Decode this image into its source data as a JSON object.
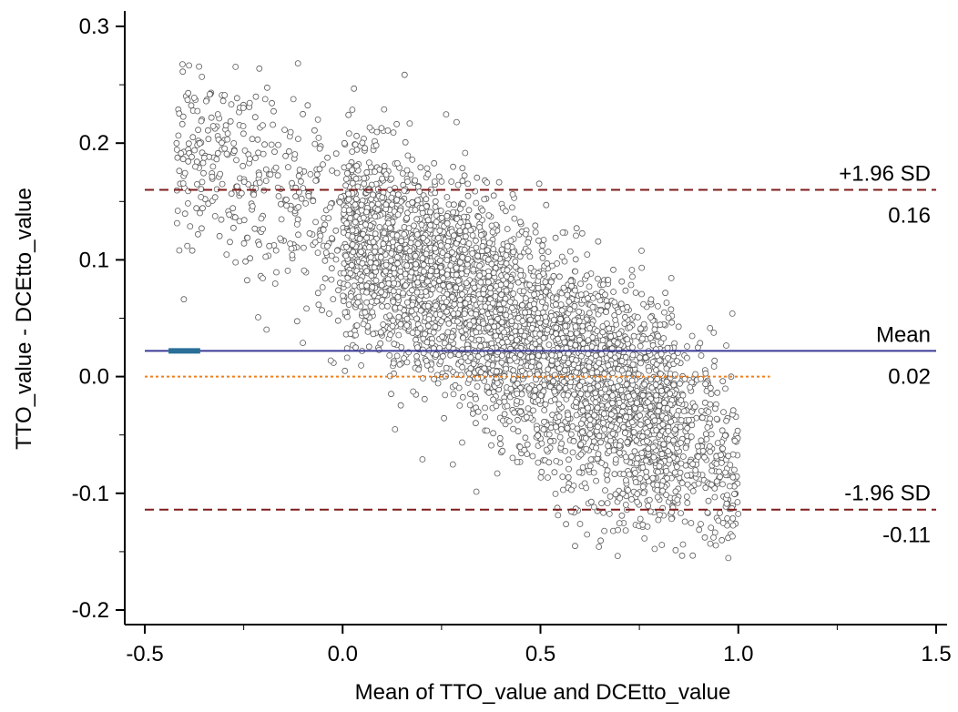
{
  "chart_data": {
    "type": "scatter",
    "title": "",
    "xlabel": "Mean of TTO_value and DCEtto_value",
    "ylabel": "TTO_value - DCEtto_value",
    "xlim": [
      -0.5,
      1.5
    ],
    "ylim": [
      -0.2,
      0.3
    ],
    "x_ticks": [
      -0.5,
      0.0,
      0.5,
      1.0,
      1.5
    ],
    "x_tick_labels": [
      "-0.5",
      "0.0",
      "0.5",
      "1.0",
      "1.5"
    ],
    "y_ticks": [
      -0.2,
      -0.1,
      0.0,
      0.1,
      0.2,
      0.3
    ],
    "y_tick_labels": [
      "-0.2",
      "-0.1",
      "0.0",
      "0.1",
      "0.2",
      "0.3"
    ],
    "grid": false,
    "reference_lines": [
      {
        "label": "+1.96 SD",
        "value_label": "0.16",
        "y": 0.16,
        "style": "dashed",
        "color": "#7f1d1d"
      },
      {
        "label": "Mean",
        "value_label": "0.02",
        "y": 0.022,
        "style": "solid",
        "color": "#3b3b98"
      },
      {
        "label": "-1.96 SD",
        "value_label": "-0.11",
        "y": -0.114,
        "style": "dashed",
        "color": "#7f1d1d"
      },
      {
        "label": "",
        "value_label": "",
        "y": 0.0,
        "x_range": [
          -0.5,
          1.08
        ],
        "style": "dotted",
        "color": "#f07f1b"
      }
    ],
    "mean_ci_bar": {
      "x_range": [
        -0.44,
        -0.36
      ],
      "y": 0.022,
      "color": "#2a6f97"
    },
    "points": {
      "count_estimate": 4500,
      "x_range": [
        -0.42,
        1.0
      ],
      "trend": {
        "intercept": 0.125,
        "slope": -0.2
      },
      "residual_sd": 0.046,
      "x_distribution": "dense from 0.0 to 0.85, sparse at extremes",
      "marker": "open-circle",
      "fill": "#ffffff",
      "stroke": "#5a5a5a"
    }
  }
}
